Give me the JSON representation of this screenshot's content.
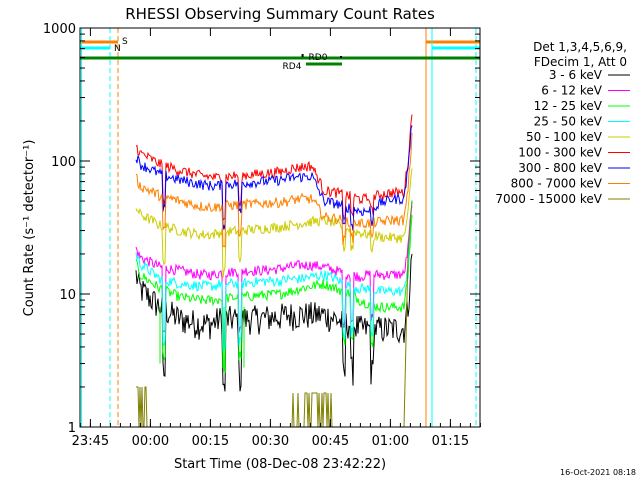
{
  "chart_data": {
    "type": "line",
    "title": "RHESSI Observing Summary Count Rates",
    "xlabel": "Start Time (08-Dec-08 23:42:22)",
    "ylabel": "Count Rate (s⁻¹ detector⁻¹)",
    "yscale": "log",
    "ylim": [
      1,
      1000
    ],
    "xlim_minutes_after_start": [
      0,
      100
    ],
    "x_ticks": [
      {
        "label": "23:45",
        "t": 2.6
      },
      {
        "label": "00:00",
        "t": 17.6
      },
      {
        "label": "00:15",
        "t": 32.6
      },
      {
        "label": "00:30",
        "t": 47.6
      },
      {
        "label": "00:45",
        "t": 62.6
      },
      {
        "label": "01:00",
        "t": 77.6
      },
      {
        "label": "01:15",
        "t": 92.6
      }
    ],
    "y_ticks": [
      {
        "label": "1",
        "v": 1
      },
      {
        "label": "10",
        "v": 10
      },
      {
        "label": "100",
        "v": 100
      },
      {
        "label": "1000",
        "v": 1000
      }
    ],
    "legend_header": [
      "Det 1,3,4,5,6,9,",
      "FDecim 1, Att 0"
    ],
    "legend_position": "right",
    "flag_labels": {
      "saa": "S",
      "night": "N",
      "rd0": "RD0",
      "rd4": "RD4"
    },
    "timestamp": "16-Oct-2021 08:18",
    "t_points": [
      14,
      15,
      20,
      25,
      30,
      33,
      34,
      35,
      37,
      40,
      45,
      50,
      52,
      53,
      55,
      58,
      61,
      64,
      66,
      68,
      70,
      72,
      75,
      78,
      81,
      82,
      83
    ],
    "series": [
      {
        "name": "3 - 6 keV",
        "color": "#000000",
        "values": [
          14,
          11,
          8,
          6.5,
          6,
          6,
          6.3,
          6.5,
          6.5,
          6.5,
          6.6,
          6.8,
          7,
          7,
          7,
          7,
          7,
          6.5,
          6,
          6,
          5.5,
          5.5,
          5.5,
          5.5,
          5.5,
          8,
          20
        ]
      },
      {
        "name": "6 - 12 keV",
        "color": "#ff00ff",
        "values": [
          22,
          19,
          16,
          15,
          14,
          14,
          14,
          14.5,
          14.5,
          15,
          15,
          15.5,
          16,
          16,
          16.5,
          16.5,
          16,
          15,
          14.5,
          14,
          13.5,
          14,
          14,
          14,
          14,
          22,
          50
        ]
      },
      {
        "name": "12 - 25 keV",
        "color": "#00ff00",
        "values": [
          17,
          14,
          11,
          9.5,
          9,
          9,
          9,
          9.2,
          9.3,
          9.5,
          9.8,
          10,
          10.5,
          10.5,
          11,
          11.5,
          12,
          11,
          10.5,
          10,
          9,
          8.5,
          8,
          8,
          8,
          14,
          40
        ]
      },
      {
        "name": "25 - 50 keV",
        "color": "#00ffff",
        "values": [
          20,
          17,
          13,
          12,
          11.5,
          11.5,
          11.5,
          12,
          12,
          12,
          12.5,
          12.5,
          13,
          13,
          13,
          13.5,
          14,
          13,
          12,
          11.5,
          11,
          11,
          10.5,
          10.5,
          10.5,
          17,
          50
        ]
      },
      {
        "name": "50 - 100 keV",
        "color": "#cccc00",
        "values": [
          45,
          40,
          33,
          30,
          28,
          28,
          28.5,
          29,
          29.5,
          30,
          31,
          32,
          33,
          33,
          34,
          35,
          36,
          34,
          32,
          30,
          29,
          28,
          27,
          26.5,
          26.5,
          40,
          90
        ]
      },
      {
        "name": "100 - 300 keV",
        "color": "#ff0000",
        "values": [
          130,
          115,
          95,
          85,
          78,
          76,
          75,
          76,
          77,
          78,
          80,
          83,
          86,
          88,
          90,
          92,
          60,
          58,
          56,
          54,
          52,
          52,
          56,
          58,
          58,
          100,
          230
        ]
      },
      {
        "name": "300 - 800 keV",
        "color": "#0000ff",
        "values": [
          110,
          95,
          80,
          72,
          67,
          65,
          65,
          66,
          67,
          68,
          70,
          72,
          74,
          75,
          76,
          77,
          50,
          48,
          46,
          44,
          42,
          42,
          48,
          52,
          52,
          90,
          200
        ]
      },
      {
        "name": "800 - 7000 keV",
        "color": "#ff8000",
        "values": [
          75,
          65,
          55,
          50,
          46,
          45,
          45,
          46,
          46.5,
          47,
          48,
          49,
          50,
          51,
          52,
          52,
          38,
          37,
          36,
          35,
          34,
          34,
          35,
          36,
          36,
          60,
          150
        ]
      },
      {
        "name": "7000 - 15000 keV",
        "color": "#808000",
        "values": [
          2,
          1.8,
          1,
          1,
          1,
          1,
          1,
          1,
          1,
          1,
          1,
          1,
          1,
          1,
          1,
          1,
          1.8,
          1.2,
          1.1,
          1,
          1,
          1,
          1,
          1,
          1,
          20,
          50
        ]
      }
    ]
  }
}
